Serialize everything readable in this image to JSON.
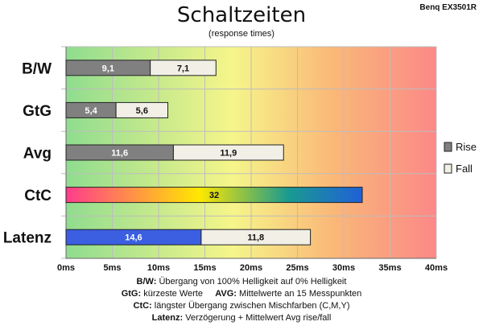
{
  "chart_data": {
    "type": "bar",
    "orientation": "horizontal",
    "stacked": true,
    "title": "Schaltzeiten",
    "subtitle": "(response times)",
    "brand": "Benq EX3501R",
    "categories": [
      "B/W",
      "GtG",
      "Avg",
      "CtC",
      "Latenz"
    ],
    "series": [
      {
        "name": "Rise",
        "values": [
          9.1,
          5.4,
          11.6,
          32,
          14.6
        ],
        "labels": [
          "9,1",
          "5,4",
          "11,6",
          "32",
          "14,6"
        ]
      },
      {
        "name": "Fall",
        "values": [
          7.1,
          5.6,
          11.9,
          null,
          11.8
        ],
        "labels": [
          "7,1",
          "5,6",
          "11,9",
          "",
          "11,8"
        ]
      }
    ],
    "xlim": [
      0,
      40
    ],
    "xticks": [
      "0ms",
      "5ms",
      "10ms",
      "15ms",
      "20ms",
      "25ms",
      "30ms",
      "35ms",
      "40ms"
    ],
    "xtick_values": [
      0,
      5,
      10,
      15,
      20,
      25,
      30,
      35,
      40
    ],
    "grid": true,
    "legend_position": "right",
    "colors": {
      "rise": "#808080",
      "fall": "#f1efe6",
      "latenz_rise": "#3b5fe0",
      "ctc_gradient": [
        "#ff3c8c",
        "#ffe800",
        "#1a9a90",
        "#2060d8"
      ],
      "background_gradient": [
        "#8fdc8f",
        "#f6f58a",
        "#fab878",
        "#fb8888"
      ]
    }
  },
  "notes": {
    "line1_key": "B/W:",
    "line1_text": "Übergang von 100% Helligkeit auf 0% Helligkeit",
    "line2_key_a": "GtG:",
    "line2_text_a": "kürzeste Werte",
    "line2_key_b": "AVG:",
    "line2_text_b": "Mittelwerte an 15 Messpunkten",
    "line3_key": "CtC:",
    "line3_text": "längster Übergang zwischen Mischfarben (C,M,Y)",
    "line4_key": "Latenz:",
    "line4_text": "Verzögerung + Mittelwert Avg rise/fall"
  }
}
